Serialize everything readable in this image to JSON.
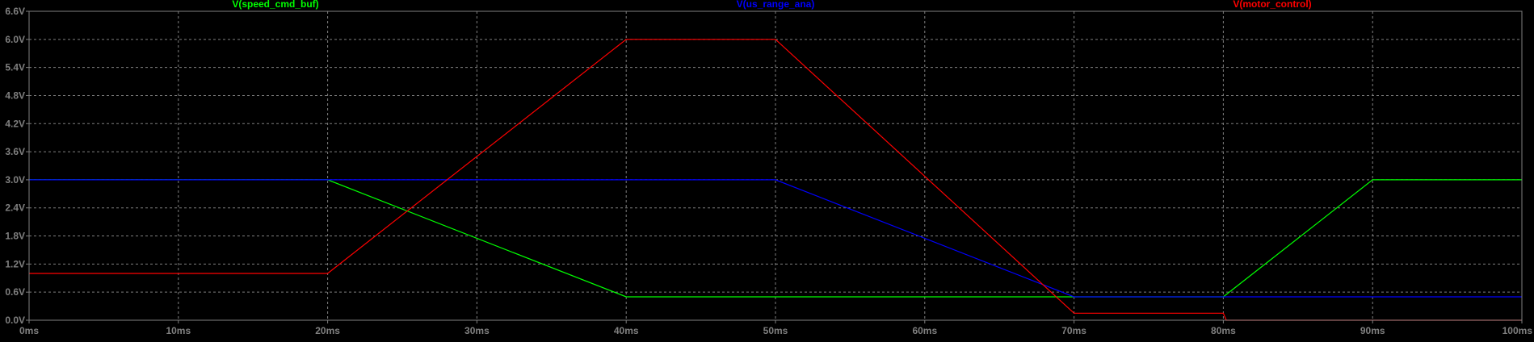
{
  "chart_data": {
    "type": "line",
    "title": "",
    "xlabel": "",
    "ylabel": "",
    "xlim": [
      0,
      100
    ],
    "ylim": [
      0,
      6.6
    ],
    "grid": true,
    "legend_placement": "top",
    "x_tick_values": [
      0,
      10,
      20,
      30,
      40,
      50,
      60,
      70,
      80,
      90,
      100
    ],
    "x_tick_labels": [
      "0ms",
      "10ms",
      "20ms",
      "30ms",
      "40ms",
      "50ms",
      "60ms",
      "70ms",
      "80ms",
      "90ms",
      "100ms"
    ],
    "y_tick_values": [
      0,
      0.6,
      1.2,
      1.8,
      2.4,
      3.0,
      3.6,
      4.2,
      4.8,
      5.4,
      6.0,
      6.6
    ],
    "y_tick_labels": [
      "0.0V",
      "0.6V",
      "1.2V",
      "1.8V",
      "2.4V",
      "3.0V",
      "3.6V",
      "4.2V",
      "4.8V",
      "5.4V",
      "6.0V",
      "6.6V"
    ],
    "series": [
      {
        "name": "V(speed_cmd_buf)",
        "color": "#00ff00",
        "x": [
          0,
          20,
          40,
          80,
          90,
          100
        ],
        "y": [
          3.0,
          3.0,
          0.5,
          0.5,
          3.0,
          3.0
        ]
      },
      {
        "name": "V(us_range_ana)",
        "color": "#0000ff",
        "x": [
          0,
          50,
          70,
          100
        ],
        "y": [
          3.0,
          3.0,
          0.5,
          0.5
        ]
      },
      {
        "name": "V(motor_control)",
        "color": "#ff0000",
        "x": [
          0,
          20,
          40,
          50,
          70,
          80,
          80.2,
          100
        ],
        "y": [
          1.0,
          1.0,
          6.0,
          6.0,
          0.15,
          0.15,
          0.0,
          0.0
        ]
      }
    ]
  },
  "colors": {
    "background": "#000000",
    "frame": "#808080",
    "grid": "#808080",
    "tick_text": "#808080"
  }
}
